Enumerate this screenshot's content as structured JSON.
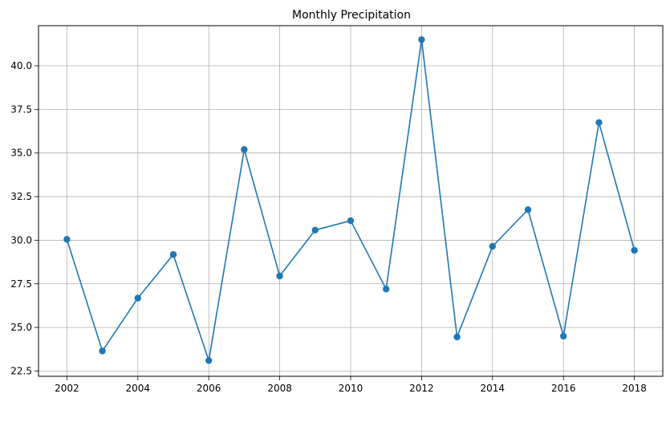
{
  "chart_data": {
    "type": "line",
    "title": "Monthly Precipitation",
    "xlabel": "",
    "ylabel": "",
    "x": [
      2002,
      2003,
      2004,
      2005,
      2006,
      2007,
      2008,
      2009,
      2010,
      2011,
      2012,
      2013,
      2014,
      2015,
      2016,
      2017,
      2018
    ],
    "series": [
      {
        "values": [
          30.05,
          23.65,
          26.68,
          29.18,
          23.1,
          35.2,
          27.95,
          30.58,
          31.12,
          27.2,
          41.5,
          24.45,
          29.65,
          31.75,
          24.5,
          36.75,
          29.42
        ],
        "color": "#1f77b4"
      }
    ],
    "xlim": [
      2001.2,
      2018.8
    ],
    "ylim": [
      22.2,
      42.3
    ],
    "xticks": [
      2002,
      2004,
      2006,
      2008,
      2010,
      2012,
      2014,
      2016,
      2018
    ],
    "yticks": [
      22.5,
      25.0,
      27.5,
      30.0,
      32.5,
      35.0,
      37.5,
      40.0
    ],
    "ytick_labels": [
      "22.5",
      "25.0",
      "27.5",
      "30.0",
      "32.5",
      "35.0",
      "37.5",
      "40.0"
    ],
    "grid": true,
    "legend": "none",
    "colors": {
      "line": "#1f77b4",
      "grid": "#b0b0b0",
      "axes": "#000000"
    }
  }
}
